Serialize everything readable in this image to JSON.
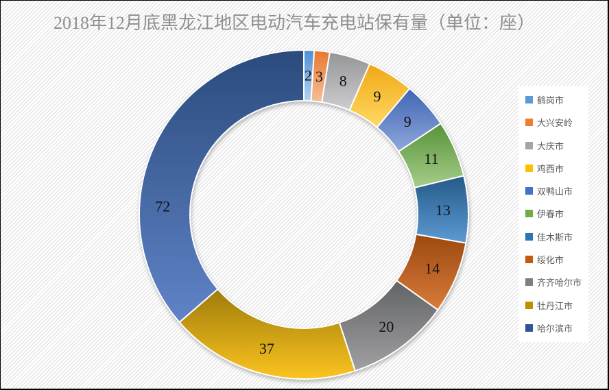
{
  "title": "2018年12月底黑龙江地区电动汽车充电站保有量（单位：座）",
  "chart_data": {
    "type": "pie",
    "subtype": "donut",
    "title": "2018年12月底黑龙江地区电动汽车充电站保有量（单位：座）",
    "unit": "座",
    "total": 198,
    "start_angle_deg": 0,
    "direction": "clockwise",
    "inner_radius_ratio": 0.69,
    "legend_position": "right",
    "grid": false,
    "categories": [
      "鹤岗市",
      "大兴安岭",
      "大庆市",
      "鸡西市",
      "双鸭山市",
      "伊春市",
      "佳木斯市",
      "绥化市",
      "齐齐哈尔市",
      "牡丹江市",
      "哈尔滨市"
    ],
    "values": [
      2,
      3,
      8,
      9,
      9,
      11,
      13,
      14,
      20,
      37,
      72
    ],
    "label_color": "#111111",
    "title_color": "#8f8f8f",
    "legend_text_color": "#595959",
    "slices": [
      {
        "name": "鹤岗市",
        "value": 2,
        "legend_color": "#5B9BD5",
        "gradient_top": "#4B90D4",
        "gradient_bottom": "#B5D1EE"
      },
      {
        "name": "大兴安岭",
        "value": 3,
        "legend_color": "#ED7D31",
        "gradient_top": "#E8782C",
        "gradient_bottom": "#F4BF9B"
      },
      {
        "name": "大庆市",
        "value": 8,
        "legend_color": "#A5A5A5",
        "gradient_top": "#949597",
        "gradient_bottom": "#CDCDCF"
      },
      {
        "name": "鸡西市",
        "value": 9,
        "legend_color": "#FFC000",
        "gradient_top": "#F0A815",
        "gradient_bottom": "#FFD964"
      },
      {
        "name": "双鸭山市",
        "value": 9,
        "legend_color": "#4472C4",
        "gradient_top": "#4065B3",
        "gradient_bottom": "#8FA7DC"
      },
      {
        "name": "伊春市",
        "value": 11,
        "legend_color": "#70AD47",
        "gradient_top": "#569338",
        "gradient_bottom": "#A6CD8A"
      },
      {
        "name": "佳木斯市",
        "value": 13,
        "legend_color": "#2E75B6",
        "gradient_top": "#255A89",
        "gradient_bottom": "#5C9AD3"
      },
      {
        "name": "绥化市",
        "value": 14,
        "legend_color": "#C55A11",
        "gradient_top": "#9C480F",
        "gradient_bottom": "#D87C3B"
      },
      {
        "name": "齐齐哈尔市",
        "value": 20,
        "legend_color": "#7F7F7F",
        "gradient_top": "#626365",
        "gradient_bottom": "#A0A0A2"
      },
      {
        "name": "牡丹江市",
        "value": 37,
        "legend_color": "#BF9000",
        "gradient_top": "#9E7B0A",
        "gradient_bottom": "#FBC41F"
      },
      {
        "name": "哈尔滨市",
        "value": 72,
        "legend_color": "#2F5597",
        "gradient_top": "#2B4B7D",
        "gradient_bottom": "#5F83C7"
      }
    ]
  }
}
